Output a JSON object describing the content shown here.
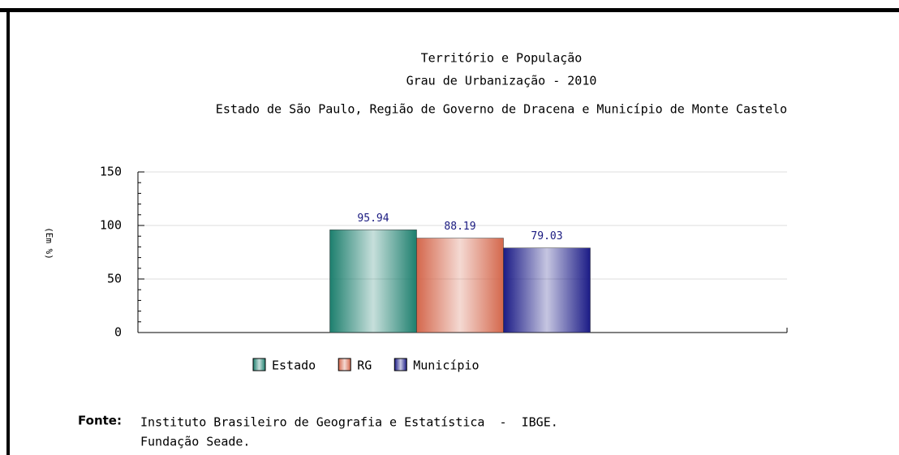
{
  "chart_data": {
    "type": "bar",
    "title": "Território e População",
    "subtitles": [
      "Grau de Urbanização - 2010",
      "Estado de São Paulo, Região de Governo de Dracena e Município de Monte Castelo"
    ],
    "ylabel": "(Em %)",
    "categories": [
      null
    ],
    "series": [
      {
        "name": "Estado",
        "color": "#1d7f6e",
        "values": [
          95.94
        ]
      },
      {
        "name": "RG",
        "color": "#d4674c",
        "values": [
          88.19
        ]
      },
      {
        "name": "Município",
        "color": "#1b1b86",
        "values": [
          79.03
        ]
      }
    ],
    "ylim": [
      0,
      150
    ],
    "yticks": [
      0,
      50,
      100,
      150
    ],
    "minor_yticks": [
      10,
      20,
      30,
      40,
      60,
      70,
      80,
      90,
      110,
      120,
      130,
      140
    ],
    "grid": true,
    "legend": "bottom"
  },
  "source": {
    "label": "Fonte:",
    "lines": [
      "Instituto Brasileiro de Geografia e Estatística  -  IBGE.",
      "Fundação Seade."
    ]
  }
}
